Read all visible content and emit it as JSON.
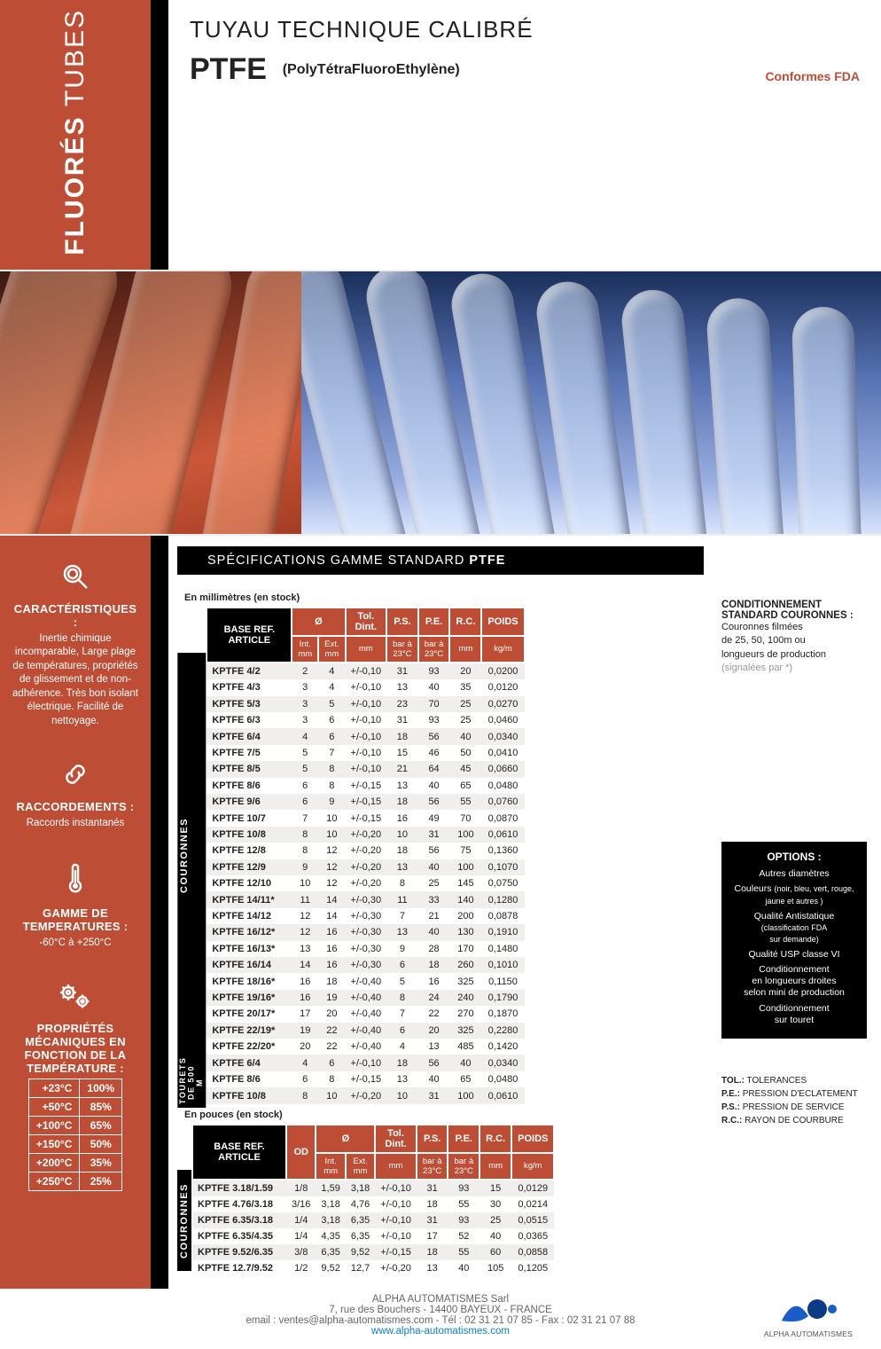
{
  "top": {
    "line1": "TUBES",
    "line2": "FLUORÉS",
    "pretitle": "TUYAU TECHNIQUE CALIBRÉ",
    "title_bold": "PTFE",
    "title_sub": "(PolyTétraFluoroEthylène)",
    "fda": "Conformes FDA",
    "bg_color": "#bd4d34"
  },
  "specbar": {
    "pre": "SPÉCIFICATIONS GAMME STANDARD ",
    "bold": "PTFE"
  },
  "sidebar": {
    "s1": {
      "title": "CARACTÉRISTIQUES :",
      "body": "Inertie chimique incomparable, Large plage de températures, propriétés de glissement et de non-adhérence. Très bon isolant électrique. Facilité de nettoyage."
    },
    "s2": {
      "title": "RACCORDEMENTS :",
      "body": "Raccords instantanés"
    },
    "s3": {
      "title": "GAMME DE TEMPERATURES :",
      "body": "-60°C à +250°C"
    },
    "s4": {
      "title": "PROPRIÉTÉS MÉCANIQUES EN FONCTION DE LA TEMPÉRATURE :"
    },
    "temp_table": [
      [
        "+23°C",
        "100%"
      ],
      [
        "+50°C",
        "85%"
      ],
      [
        "+100°C",
        "65%"
      ],
      [
        "+150°C",
        "50%"
      ],
      [
        "+200°C",
        "35%"
      ],
      [
        "+250°C",
        "25%"
      ]
    ]
  },
  "captions": {
    "mm": "En millimètres (en stock)",
    "in": "En pouces (en stock)"
  },
  "table_mm": {
    "row_label_couronnes": "COURONNES",
    "row_label_tourets": "TOURETS\nDE 500 M",
    "header": {
      "ref": "BASE REF.\nARTICLE",
      "dia": "Ø",
      "tol": "Tol.\nDint.",
      "ps": "P.S.",
      "pe": "P.E.",
      "rc": "R.C.",
      "poids": "POIDS",
      "intmm": "Int.\nmm",
      "extmm": "Ext.\nmm",
      "mm": "mm",
      "bar": "bar à\n23°C",
      "kgm": "kg/m"
    },
    "rows": [
      [
        "KPTFE 4/2",
        "2",
        "4",
        "+/-0,10",
        "31",
        "93",
        "20",
        "0,0200"
      ],
      [
        "KPTFE 4/3",
        "3",
        "4",
        "+/-0,10",
        "13",
        "40",
        "35",
        "0,0120"
      ],
      [
        "KPTFE 5/3",
        "3",
        "5",
        "+/-0,10",
        "23",
        "70",
        "25",
        "0,0270"
      ],
      [
        "KPTFE 6/3",
        "3",
        "6",
        "+/-0,10",
        "31",
        "93",
        "25",
        "0,0460"
      ],
      [
        "KPTFE 6/4",
        "4",
        "6",
        "+/-0,10",
        "18",
        "56",
        "40",
        "0,0340"
      ],
      [
        "KPTFE 7/5",
        "5",
        "7",
        "+/-0,10",
        "15",
        "46",
        "50",
        "0,0410"
      ],
      [
        "KPTFE 8/5",
        "5",
        "8",
        "+/-0,10",
        "21",
        "64",
        "45",
        "0,0660"
      ],
      [
        "KPTFE 8/6",
        "6",
        "8",
        "+/-0,15",
        "13",
        "40",
        "65",
        "0,0480"
      ],
      [
        "KPTFE 9/6",
        "6",
        "9",
        "+/-0,15",
        "18",
        "56",
        "55",
        "0,0760"
      ],
      [
        "KPTFE 10/7",
        "7",
        "10",
        "+/-0,15",
        "16",
        "49",
        "70",
        "0,0870"
      ],
      [
        "KPTFE 10/8",
        "8",
        "10",
        "+/-0,20",
        "10",
        "31",
        "100",
        "0,0610"
      ],
      [
        "KPTFE 12/8",
        "8",
        "12",
        "+/-0,20",
        "18",
        "56",
        "75",
        "0,1360"
      ],
      [
        "KPTFE 12/9",
        "9",
        "12",
        "+/-0,20",
        "13",
        "40",
        "100",
        "0,1070"
      ],
      [
        "KPTFE 12/10",
        "10",
        "12",
        "+/-0,20",
        "8",
        "25",
        "145",
        "0,0750"
      ],
      [
        "KPTFE 14/11*",
        "11",
        "14",
        "+/-0,30",
        "11",
        "33",
        "140",
        "0,1280"
      ],
      [
        "KPTFE 14/12",
        "12",
        "14",
        "+/-0,30",
        "7",
        "21",
        "200",
        "0,0878"
      ],
      [
        "KPTFE 16/12*",
        "12",
        "16",
        "+/-0,30",
        "13",
        "40",
        "130",
        "0,1910"
      ],
      [
        "KPTFE 16/13*",
        "13",
        "16",
        "+/-0,30",
        "9",
        "28",
        "170",
        "0,1480"
      ],
      [
        "KPTFE 16/14",
        "14",
        "16",
        "+/-0,30",
        "6",
        "18",
        "260",
        "0,1010"
      ],
      [
        "KPTFE 18/16*",
        "16",
        "18",
        "+/-0,40",
        "5",
        "16",
        "325",
        "0,1150"
      ],
      [
        "KPTFE 19/16*",
        "16",
        "19",
        "+/-0,40",
        "8",
        "24",
        "240",
        "0,1790"
      ],
      [
        "KPTFE 20/17*",
        "17",
        "20",
        "+/-0,40",
        "7",
        "22",
        "270",
        "0,1870"
      ],
      [
        "KPTFE 22/19*",
        "19",
        "22",
        "+/-0,40",
        "6",
        "20",
        "325",
        "0,2280"
      ],
      [
        "KPTFE 22/20*",
        "20",
        "22",
        "+/-0,40",
        "4",
        "13",
        "485",
        "0,1420"
      ]
    ],
    "rows_tourets": [
      [
        "KPTFE 6/4",
        "4",
        "6",
        "+/-0,10",
        "18",
        "56",
        "40",
        "0,0340"
      ],
      [
        "KPTFE 8/6",
        "6",
        "8",
        "+/-0,15",
        "13",
        "40",
        "65",
        "0,0480"
      ],
      [
        "KPTFE 10/8",
        "8",
        "10",
        "+/-0,20",
        "10",
        "31",
        "100",
        "0,0610"
      ]
    ]
  },
  "table_in": {
    "row_label": "COURONNES",
    "header": {
      "ref": "BASE REF.\nARTICLE",
      "od": "OD",
      "dia": "Ø",
      "tol": "Tol.\nDint.",
      "ps": "P.S.",
      "pe": "P.E.",
      "rc": "R.C.",
      "poids": "POIDS",
      "intmm": "Int.\nmm",
      "extmm": "Ext.\nmm",
      "mm": "mm",
      "bar": "bar à\n23°C",
      "kgm": "kg/m"
    },
    "rows": [
      [
        "KPTFE 3.18/1.59",
        "1/8",
        "1,59",
        "3,18",
        "+/-0,10",
        "31",
        "93",
        "15",
        "0,0129"
      ],
      [
        "KPTFE 4.76/3.18",
        "3/16",
        "3,18",
        "4,76",
        "+/-0,10",
        "18",
        "55",
        "30",
        "0,0214"
      ],
      [
        "KPTFE 6.35/3.18",
        "1/4",
        "3,18",
        "6,35",
        "+/-0,10",
        "31",
        "93",
        "25",
        "0,0515"
      ],
      [
        "KPTFE 6.35/4.35",
        "1/4",
        "4,35",
        "6,35",
        "+/-0,10",
        "17",
        "52",
        "40",
        "0,0365"
      ],
      [
        "KPTFE 9.52/6.35",
        "3/8",
        "6,35",
        "9,52",
        "+/-0,15",
        "18",
        "55",
        "60",
        "0,0858"
      ],
      [
        "KPTFE 12.7/9.52",
        "1/2",
        "9,52",
        "12,7",
        "+/-0,20",
        "13",
        "40",
        "105",
        "0,1205"
      ]
    ]
  },
  "right": {
    "cond_title": "CONDITIONNEMENT STANDARD COURONNES :",
    "cond_body": "Couronnes filmées\nde 25, 50, 100m ou\nlongueurs de production",
    "cond_grey": "(signalées par *)",
    "opt_title": "OPTIONS :",
    "opt": [
      "Autres diamètres",
      "Couleurs (noir, bleu, vert, rouge, jaune et autres )",
      "Qualité Antistatique\n(classification FDA\nsur demande)",
      "Qualité USP classe VI",
      "Conditionnement\nen longueurs droites\nselon mini de production",
      "Conditionnement\nsur touret"
    ],
    "abbr": [
      [
        "TOL.:",
        "TOLERANCES"
      ],
      [
        "P.E.:",
        "PRESSION D'ECLATEMENT"
      ],
      [
        "P.S.:",
        "PRESSION DE SERVICE"
      ],
      [
        "R.C.:",
        "RAYON DE COURBURE"
      ]
    ]
  },
  "footer": {
    "l1": "ALPHA AUTOMATISMES Sarl",
    "l2": "7, rue des Bouchers - 14400 BAYEUX - FRANCE",
    "l3": "email : ventes@alpha-automatismes.com - Tél : 02 31 21 07 85 - Fax : 02 31 21 07 88",
    "l4": "www.alpha-automatismes.com",
    "brand": "ALPHA AUTOMATISMES",
    "logo_color1": "#1a5dc9",
    "logo_color2": "#0c3b8a"
  }
}
